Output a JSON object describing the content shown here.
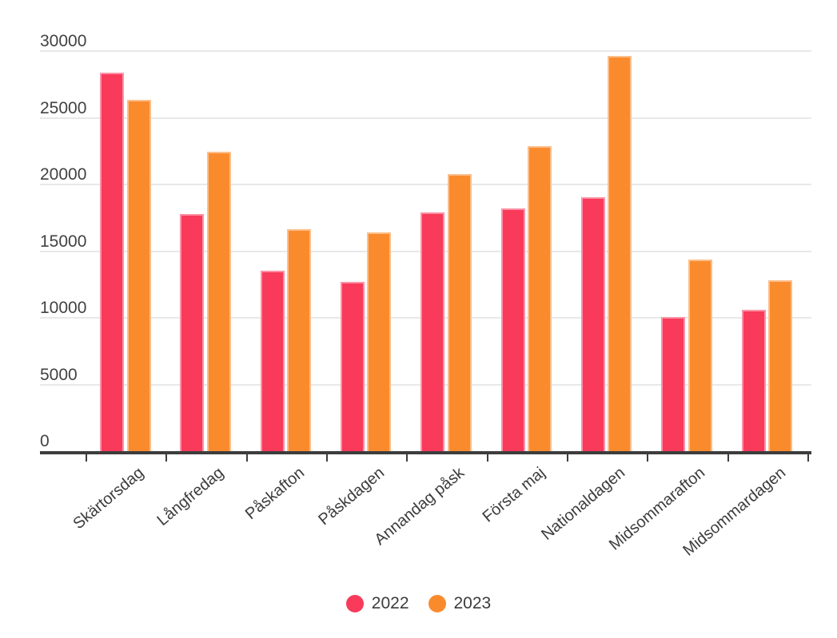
{
  "chart_data": {
    "type": "bar",
    "title": "",
    "xlabel": "",
    "ylabel": "",
    "categories": [
      "Skärtorsdag",
      "Långfredag",
      "Påskafton",
      "Påskdagen",
      "Annandag påsk",
      "Första maj",
      "Nationaldagen",
      "Midsommarafton",
      "Midsommardagen"
    ],
    "series": [
      {
        "name": "2022",
        "color": "#F93A5B",
        "values": [
          28400,
          17800,
          13550,
          12700,
          17900,
          18200,
          19050,
          10050,
          10600
        ]
      },
      {
        "name": "2023",
        "color": "#FA8B2D",
        "values": [
          26350,
          22450,
          16650,
          16400,
          20800,
          22850,
          29650,
          14400,
          12800
        ]
      }
    ],
    "ylim": [
      0,
      30000
    ],
    "yticks": [
      0,
      5000,
      10000,
      15000,
      20000,
      25000,
      30000
    ],
    "grid": "horizontal",
    "gridline_color": "#E8E8E8",
    "axis_color": "#3D3D3D",
    "tick_label_color": "#424242",
    "legend_position": "bottom",
    "legend": [
      {
        "label": "2022",
        "color": "#F93A5B"
      },
      {
        "label": "2023",
        "color": "#FA8B2D"
      }
    ]
  }
}
